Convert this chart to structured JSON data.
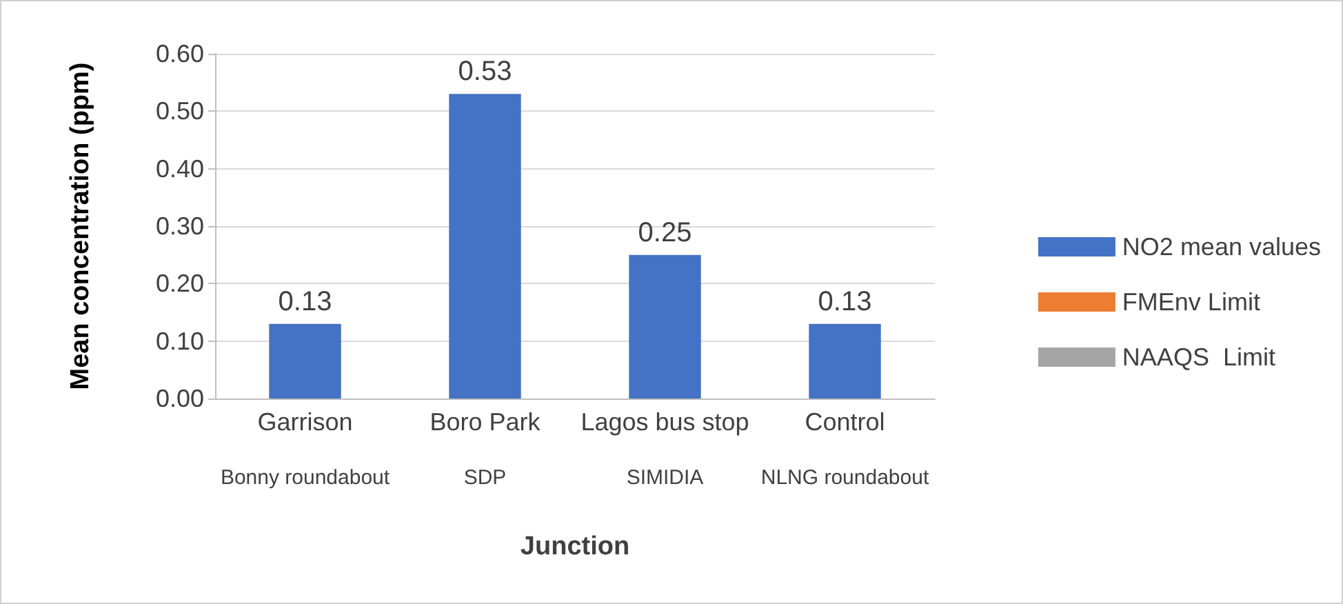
{
  "chart_data": {
    "type": "bar",
    "xlabel": "Junction",
    "ylabel": "Mean concentration (ppm)",
    "categories": [
      "Garrison",
      "Boro Park",
      "Lagos bus stop",
      "Control"
    ],
    "series": [
      {
        "name": "NO2 mean values",
        "color": "#4472c4",
        "values": [
          0.13,
          0.53,
          0.25,
          0.13
        ]
      },
      {
        "name": "FMEnv Limit",
        "type": "line",
        "color": "#ed7d31",
        "values": [
          null,
          null,
          null,
          null
        ]
      },
      {
        "name": "NAAQS  Limit",
        "type": "line",
        "color": "#a5a5a5",
        "values": [
          null,
          null,
          null,
          null
        ]
      }
    ],
    "ylim": [
      0,
      0.6
    ],
    "yticks": [
      {
        "value": 0,
        "label": "0.00"
      },
      {
        "value": 0.1,
        "label": "0.10"
      },
      {
        "value": 0.2,
        "label": "0.20"
      },
      {
        "value": 0.3,
        "label": "0.30"
      },
      {
        "value": 0.4,
        "label": "0.40"
      },
      {
        "value": 0.5,
        "label": "0.50"
      },
      {
        "value": 0.6,
        "label": "0.60"
      }
    ],
    "grid": "y",
    "legend": "right",
    "data_labels": true,
    "annotations": [
      "Bonny roundabout",
      "SDP",
      "SIMIDIA",
      "NLNG roundabout"
    ]
  }
}
